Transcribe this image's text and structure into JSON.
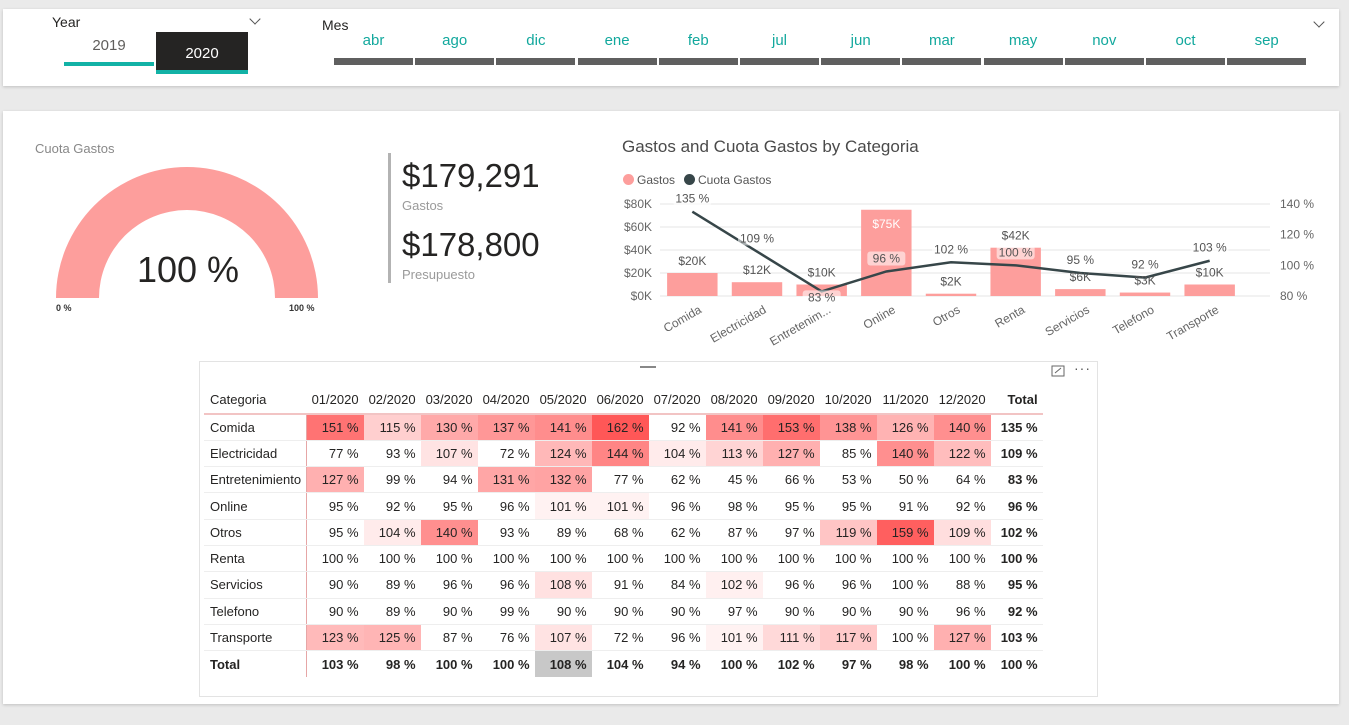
{
  "year_slicer": {
    "title": "Year",
    "options": [
      {
        "label": "2019",
        "selected": false
      },
      {
        "label": "2020",
        "selected": true
      }
    ]
  },
  "mes_slicer": {
    "title": "Mes",
    "options": [
      "abr",
      "ago",
      "dic",
      "ene",
      "feb",
      "jul",
      "jun",
      "mar",
      "may",
      "nov",
      "oct",
      "sep"
    ]
  },
  "gauge": {
    "title": "Cuota Gastos",
    "value_label": "100 %",
    "min_label": "0 %",
    "max_label": "100 %",
    "fill_fraction": 1.0,
    "color": "#fd9e9c"
  },
  "kpis": [
    {
      "value": "$179,291",
      "label": "Gastos"
    },
    {
      "value": "$178,800",
      "label": "Presupuesto"
    }
  ],
  "chart": {
    "title": "Gastos and Cuota Gastos by Categoria",
    "legend": [
      {
        "label": "Gastos",
        "color": "#fd9e9c"
      },
      {
        "label": "Cuota Gastos",
        "color": "#374649"
      }
    ]
  },
  "chart_data": {
    "type": "bar",
    "title": "Gastos and Cuota Gastos by Categoria",
    "categories": [
      "Comida",
      "Electricidad",
      "Entretenim...",
      "Online",
      "Otros",
      "Renta",
      "Servicios",
      "Telefono",
      "Transporte"
    ],
    "series": [
      {
        "name": "Gastos",
        "type": "bar",
        "axis": "left",
        "values": [
          20000,
          12000,
          10000,
          75000,
          2000,
          42000,
          6000,
          3000,
          10000
        ],
        "labels": [
          "$20K",
          "$12K",
          "$10K",
          "$75K",
          "$2K",
          "$42K",
          "$6K",
          "$3K",
          "$10K"
        ]
      },
      {
        "name": "Cuota Gastos",
        "type": "line",
        "axis": "right",
        "values": [
          135,
          109,
          83,
          96,
          102,
          100,
          95,
          92,
          103
        ],
        "labels": [
          "135 %",
          "109 %",
          "83 %",
          "96 %",
          "102 %",
          "100 %",
          "95 %",
          "92 %",
          "103 %"
        ]
      }
    ],
    "y_left": {
      "ticks": [
        "$0K",
        "$20K",
        "$40K",
        "$60K",
        "$80K"
      ],
      "ylim": [
        0,
        80000
      ]
    },
    "y_right": {
      "ticks": [
        "80 %",
        "100 %",
        "120 %",
        "140 %"
      ],
      "ylim": [
        80,
        140
      ]
    },
    "grid": true,
    "legend_position": "top-left"
  },
  "matrix": {
    "headers": [
      "Categoria",
      "01/2020",
      "02/2020",
      "03/2020",
      "04/2020",
      "05/2020",
      "06/2020",
      "07/2020",
      "08/2020",
      "09/2020",
      "10/2020",
      "11/2020",
      "12/2020",
      "Total"
    ],
    "rows": [
      {
        "cat": "Comida",
        "values": [
          151,
          115,
          130,
          137,
          141,
          162,
          92,
          141,
          153,
          138,
          126,
          140
        ],
        "total": 135
      },
      {
        "cat": "Electricidad",
        "values": [
          77,
          93,
          107,
          72,
          124,
          144,
          104,
          113,
          127,
          85,
          140,
          122
        ],
        "total": 109
      },
      {
        "cat": "Entretenimiento",
        "values": [
          127,
          99,
          94,
          131,
          132,
          77,
          62,
          45,
          66,
          53,
          50,
          64
        ],
        "total": 83
      },
      {
        "cat": "Online",
        "values": [
          95,
          92,
          95,
          96,
          101,
          101,
          96,
          98,
          95,
          95,
          91,
          92
        ],
        "total": 96
      },
      {
        "cat": "Otros",
        "values": [
          95,
          104,
          140,
          93,
          89,
          68,
          62,
          87,
          97,
          119,
          159,
          109
        ],
        "total": 102
      },
      {
        "cat": "Renta",
        "values": [
          100,
          100,
          100,
          100,
          100,
          100,
          100,
          100,
          100,
          100,
          100,
          100
        ],
        "total": 100
      },
      {
        "cat": "Servicios",
        "values": [
          90,
          89,
          96,
          96,
          108,
          91,
          84,
          102,
          96,
          96,
          100,
          88
        ],
        "total": 95
      },
      {
        "cat": "Telefono",
        "values": [
          90,
          89,
          90,
          99,
          90,
          90,
          90,
          97,
          90,
          90,
          90,
          96
        ],
        "total": 92
      },
      {
        "cat": "Transporte",
        "values": [
          123,
          125,
          87,
          76,
          107,
          72,
          96,
          101,
          111,
          117,
          100,
          127
        ],
        "total": 103
      }
    ],
    "total_row": {
      "cat": "Total",
      "values": [
        103,
        98,
        100,
        100,
        108,
        104,
        94,
        100,
        102,
        97,
        98,
        100
      ],
      "total": 100,
      "highlight_index": 4
    },
    "suffix": " %"
  }
}
